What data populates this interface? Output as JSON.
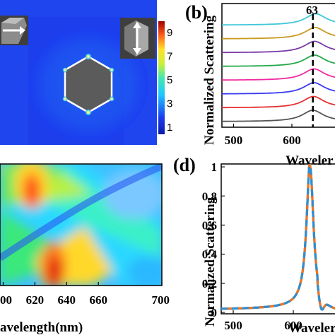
{
  "panels": {
    "b": {
      "label": "(b)",
      "annotation": "63"
    },
    "d": {
      "label": "(d)"
    }
  },
  "chart_data": [
    {
      "type": "heatmap",
      "panel": "a",
      "title": "",
      "colorbar_ticks": [
        "9",
        "7",
        "5",
        "3",
        "1"
      ],
      "colorbar_range": [
        0,
        10
      ],
      "colors": {
        "low": "#1a3df0",
        "high": "#9e0000"
      },
      "icons": [
        "hexagon-particle-icon-horizontal-arrow",
        "hexagon-particle-icon-vertical-arrow"
      ]
    },
    {
      "type": "line",
      "panel": "b",
      "xlabel": "Waveler",
      "ylabel": "Normalized Scattering",
      "xticks": [
        "500",
        "600"
      ],
      "xlim": [
        480,
        680
      ],
      "peak_marker": 636,
      "series": [
        {
          "color": "#555555",
          "offset": 0,
          "peak": 636
        },
        {
          "color": "#e53030",
          "offset": 1,
          "peak": 637
        },
        {
          "color": "#3a3af0",
          "offset": 2,
          "peak": 638
        },
        {
          "color": "#f02aa0",
          "offset": 3,
          "peak": 638
        },
        {
          "color": "#22a84a",
          "offset": 4,
          "peak": 639
        },
        {
          "color": "#7a3aa8",
          "offset": 5,
          "peak": 639
        },
        {
          "color": "#c89a1e",
          "offset": 6,
          "peak": 640
        },
        {
          "color": "#3ec8d8",
          "offset": 7,
          "peak": 641
        }
      ]
    },
    {
      "type": "heatmap",
      "panel": "c",
      "xlabel": "avelength(nm)",
      "xticks": [
        "00",
        "620",
        "640",
        "660",
        "700"
      ],
      "xlim": [
        598,
        700
      ]
    },
    {
      "type": "line",
      "panel": "d",
      "xlabel": "Waveler",
      "ylabel": "Normalized Scattering",
      "xticks": [
        "500",
        "600"
      ],
      "yticks": [
        "1",
        "0.8",
        "0.6",
        "0.4",
        "0.2",
        "0"
      ],
      "ylim": [
        0,
        1.02
      ],
      "xlim": [
        480,
        680
      ],
      "series": [
        {
          "color": "#111111",
          "style": "solid",
          "peak": 628
        },
        {
          "color": "#e8752a",
          "style": "solid",
          "peak": 628
        },
        {
          "color": "#2f8fd0",
          "style": "dashed",
          "peak": 628
        }
      ]
    }
  ]
}
